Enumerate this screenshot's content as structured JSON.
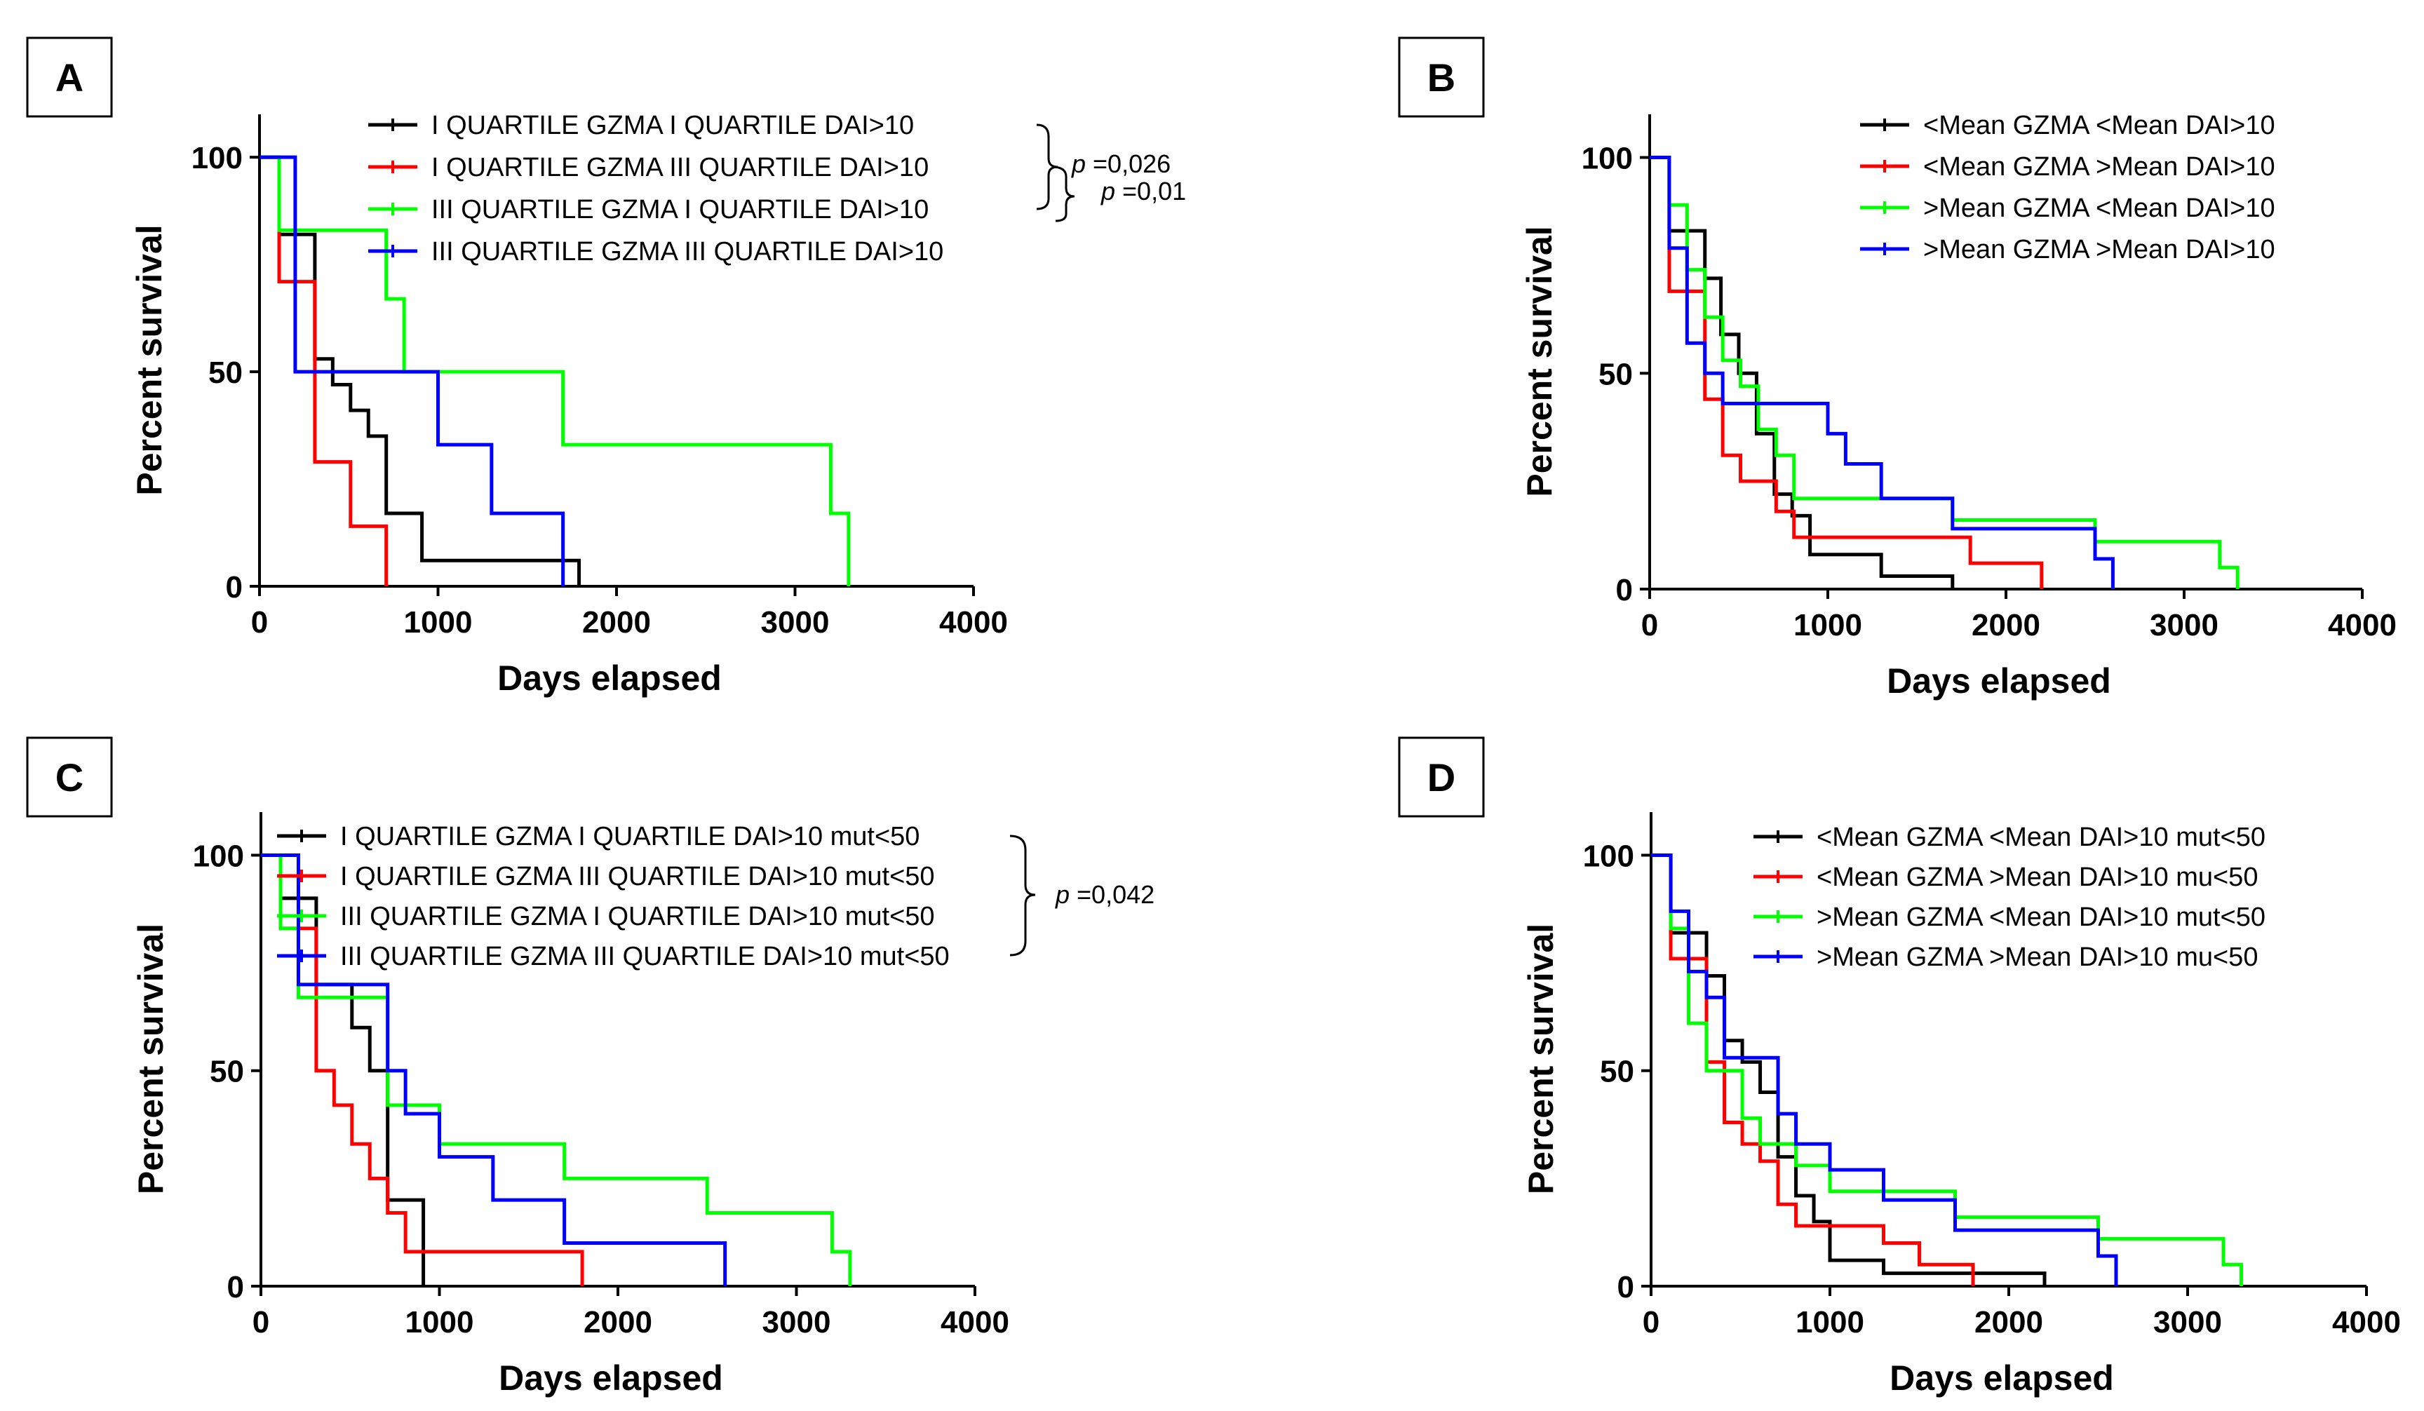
{
  "chart_data": [
    {
      "type": "line",
      "panel": "A",
      "xlabel": "Days elapsed",
      "ylabel": "Percent survival",
      "xlim": [
        0,
        4000
      ],
      "ylim": [
        0,
        110
      ],
      "xticks": [
        0,
        1000,
        2000,
        3000,
        4000
      ],
      "yticks": [
        0,
        50,
        100
      ],
      "step": true,
      "legend_position": "top-right",
      "series": [
        {
          "name": "I QUARTILE GZMA I QUARTILE DAI>10",
          "color": "#000000",
          "x": [
            0,
            110,
            310,
            410,
            510,
            610,
            710,
            910,
            1790,
            1790
          ],
          "y": [
            100,
            82,
            53,
            47,
            41,
            35,
            17,
            6,
            6,
            0
          ]
        },
        {
          "name": "I QUARTILE GZMA III QUARTILE DAI>10",
          "color": "#ff0000",
          "x": [
            0,
            110,
            310,
            510,
            710,
            710
          ],
          "y": [
            100,
            71,
            29,
            14,
            14,
            0
          ]
        },
        {
          "name": "III QUARTILE GZMA I QUARTILE DAI>10",
          "color": "#00ff00",
          "x": [
            0,
            110,
            710,
            810,
            1700,
            3200,
            3300,
            3300
          ],
          "y": [
            100,
            83,
            67,
            50,
            33,
            17,
            17,
            0
          ]
        },
        {
          "name": "III QUARTILE GZMA III QUARTILE DAI>10",
          "color": "#0000ff",
          "x": [
            0,
            200,
            1000,
            1300,
            1700,
            1700
          ],
          "y": [
            100,
            50,
            33,
            17,
            17,
            0
          ]
        }
      ],
      "annotations": [
        {
          "prefix": "p",
          "text": " =0,026"
        },
        {
          "prefix": "p",
          "text": " =0,01"
        }
      ]
    },
    {
      "type": "line",
      "panel": "B",
      "xlabel": "Days elapsed",
      "ylabel": "Percent survival",
      "xlim": [
        0,
        4000
      ],
      "ylim": [
        0,
        110
      ],
      "xticks": [
        0,
        1000,
        2000,
        3000,
        4000
      ],
      "yticks": [
        0,
        50,
        100
      ],
      "step": true,
      "legend_position": "top-right",
      "series": [
        {
          "name": "<Mean GZMA <Mean DAI>10",
          "color": "#000000",
          "x": [
            0,
            110,
            310,
            400,
            500,
            600,
            700,
            800,
            900,
            1000,
            1300,
            1700,
            1700
          ],
          "y": [
            100,
            83,
            72,
            59,
            50,
            36,
            22,
            17,
            8,
            8,
            3,
            3,
            0
          ]
        },
        {
          "name": "<Mean GZMA >Mean DAI>10",
          "color": "#ff0000",
          "x": [
            0,
            110,
            310,
            410,
            510,
            710,
            810,
            1000,
            1800,
            2200,
            2200
          ],
          "y": [
            100,
            69,
            44,
            31,
            25,
            18,
            12,
            12,
            6,
            6,
            0
          ]
        },
        {
          "name": ">Mean GZMA <Mean DAI>10",
          "color": "#00ff00",
          "x": [
            0,
            110,
            210,
            310,
            410,
            510,
            610,
            710,
            810,
            1700,
            2500,
            3200,
            3300,
            3300
          ],
          "y": [
            100,
            89,
            74,
            63,
            53,
            47,
            37,
            31,
            21,
            16,
            11,
            5,
            5,
            0
          ]
        },
        {
          "name": ">Mean GZMA >Mean DAI>10",
          "color": "#0000ff",
          "x": [
            0,
            110,
            210,
            310,
            410,
            1000,
            1100,
            1300,
            1700,
            2500,
            2600,
            2600
          ],
          "y": [
            100,
            79,
            57,
            50,
            43,
            36,
            29,
            21,
            14,
            7,
            7,
            0
          ]
        }
      ]
    },
    {
      "type": "line",
      "panel": "C",
      "xlabel": "Days elapsed",
      "ylabel": "Percent survival",
      "xlim": [
        0,
        4000
      ],
      "ylim": [
        0,
        110
      ],
      "xticks": [
        0,
        1000,
        2000,
        3000,
        4000
      ],
      "yticks": [
        0,
        50,
        100
      ],
      "step": true,
      "legend_position": "top-right",
      "series": [
        {
          "name": "I QUARTILE GZMA I QUARTILE DAI>10 mut<50",
          "color": "#000000",
          "x": [
            0,
            110,
            310,
            510,
            610,
            710,
            910,
            910
          ],
          "y": [
            100,
            90,
            70,
            60,
            50,
            20,
            10,
            0
          ]
        },
        {
          "name": "I QUARTILE GZMA III QUARTILE DAI>10 mut<50",
          "color": "#ff0000",
          "x": [
            0,
            110,
            310,
            410,
            510,
            610,
            710,
            810,
            910,
            1800,
            1800
          ],
          "y": [
            100,
            83,
            50,
            42,
            33,
            25,
            17,
            8,
            8,
            8,
            0
          ]
        },
        {
          "name": "III QUARTILE GZMA I QUARTILE DAI>10 mut<50",
          "color": "#00ff00",
          "x": [
            0,
            110,
            210,
            710,
            1000,
            1700,
            2500,
            3200,
            3300,
            3300
          ],
          "y": [
            100,
            83,
            67,
            42,
            33,
            25,
            17,
            8,
            8,
            0
          ]
        },
        {
          "name": "III QUARTILE GZMA III QUARTILE DAI>10 mut<50",
          "color": "#0000ff",
          "x": [
            0,
            210,
            710,
            810,
            1000,
            1300,
            1700,
            2600,
            2600
          ],
          "y": [
            100,
            70,
            50,
            40,
            30,
            20,
            10,
            10,
            0
          ]
        }
      ],
      "annotations": [
        {
          "prefix": "p",
          "text": " =0,042"
        }
      ]
    },
    {
      "type": "line",
      "panel": "D",
      "xlabel": "Days elapsed",
      "ylabel": "Percent survival",
      "xlim": [
        0,
        4000
      ],
      "ylim": [
        0,
        110
      ],
      "xticks": [
        0,
        1000,
        2000,
        3000,
        4000
      ],
      "yticks": [
        0,
        50,
        100
      ],
      "step": true,
      "legend_position": "top-right",
      "series": [
        {
          "name": "<Mean GZMA <Mean DAI>10 mut<50",
          "color": "#000000",
          "x": [
            0,
            110,
            310,
            410,
            510,
            610,
            710,
            810,
            910,
            1000,
            1300,
            1800,
            2200,
            2200
          ],
          "y": [
            100,
            82,
            72,
            57,
            52,
            45,
            30,
            21,
            15,
            6,
            3,
            3,
            3,
            0
          ]
        },
        {
          "name": "<Mean GZMA >Mean DAI>10 mu<50",
          "color": "#ff0000",
          "x": [
            0,
            110,
            310,
            410,
            510,
            610,
            710,
            810,
            1000,
            1300,
            1500,
            1800,
            1800
          ],
          "y": [
            100,
            76,
            52,
            38,
            33,
            29,
            19,
            14,
            14,
            10,
            5,
            5,
            0
          ]
        },
        {
          "name": ">Mean GZMA <Mean DAI>10 mut<50",
          "color": "#00ff00",
          "x": [
            0,
            110,
            210,
            310,
            510,
            610,
            810,
            1000,
            1700,
            2500,
            3200,
            3300,
            3300
          ],
          "y": [
            100,
            83,
            61,
            50,
            39,
            33,
            28,
            22,
            16,
            11,
            5,
            5,
            0
          ]
        },
        {
          "name": ">Mean GZMA >Mean DAI>10 mu<50",
          "color": "#0000ff",
          "x": [
            0,
            110,
            210,
            310,
            410,
            710,
            810,
            1000,
            1300,
            1700,
            2500,
            2600,
            2600
          ],
          "y": [
            100,
            87,
            73,
            67,
            53,
            40,
            33,
            27,
            20,
            13,
            7,
            7,
            0
          ]
        }
      ]
    }
  ]
}
